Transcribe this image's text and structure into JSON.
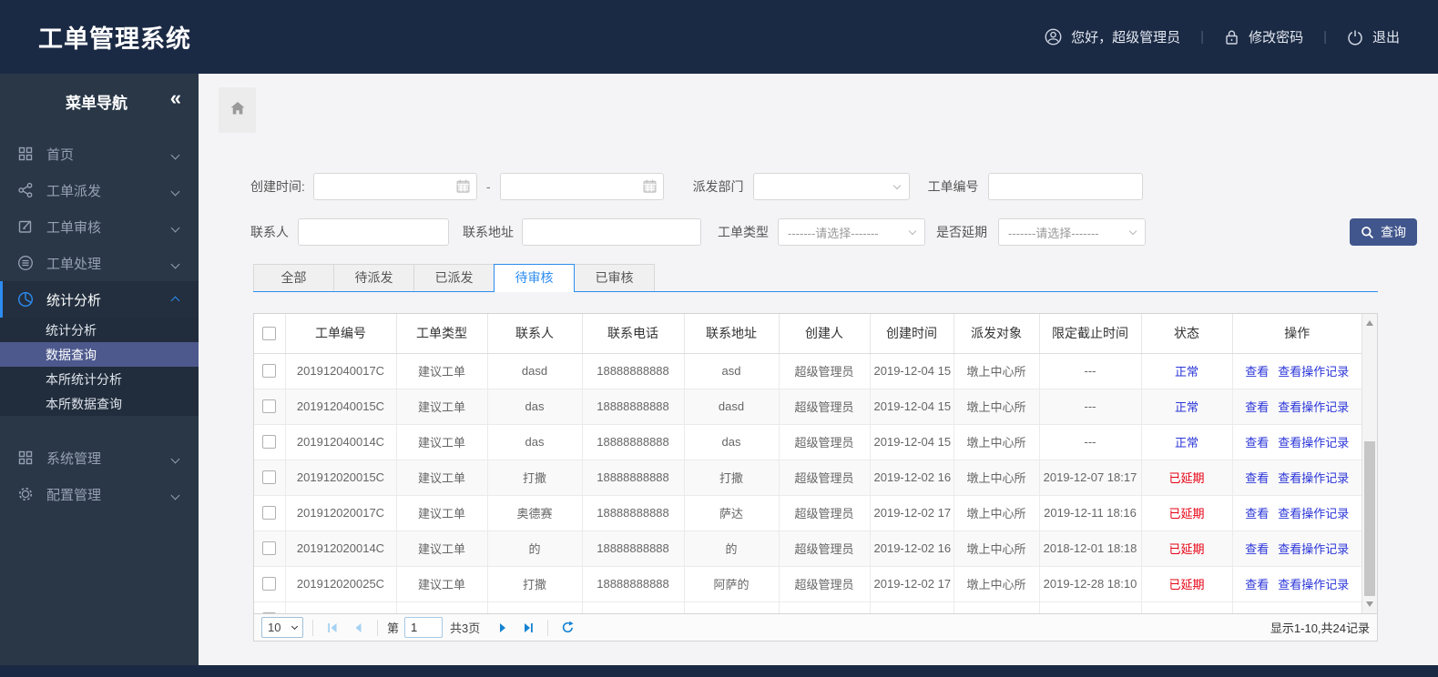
{
  "colors": {
    "navy": "#1b2a44",
    "accent": "#2d8cf0",
    "link": "#2b35d8",
    "btn": "#41568c",
    "status_normal": "#2b35d8",
    "status_delayed": "#e60012"
  },
  "header": {
    "app_title": "工单管理系统",
    "greeting": "您好，超级管理员",
    "change_password": "修改密码",
    "logout": "退出",
    "divider": "|"
  },
  "sidebar": {
    "title": "菜单导航",
    "collapse_glyph": "«",
    "items": [
      {
        "label": "首页",
        "icon": "grid-icon",
        "expanded": false,
        "active": false
      },
      {
        "label": "工单派发",
        "icon": "share-icon",
        "expanded": false,
        "active": false
      },
      {
        "label": "工单审核",
        "icon": "edit-icon",
        "expanded": false,
        "active": false
      },
      {
        "label": "工单处理",
        "icon": "process-icon",
        "expanded": false,
        "active": false
      },
      {
        "label": "统计分析",
        "icon": "pie-chart-icon",
        "expanded": true,
        "active": true,
        "children": [
          {
            "label": "统计分析",
            "selected": false
          },
          {
            "label": "数据查询",
            "selected": true
          },
          {
            "label": "本所统计分析",
            "selected": false
          },
          {
            "label": "本所数据查询",
            "selected": false
          }
        ]
      },
      {
        "label": "系统管理",
        "icon": "grid-icon",
        "expanded": false,
        "active": false
      },
      {
        "label": "配置管理",
        "icon": "gear-icon",
        "expanded": false,
        "active": false
      }
    ]
  },
  "filters": {
    "create_time_label": "创建时间:",
    "date_range_separator": "-",
    "date_from_value": "",
    "date_to_value": "",
    "dispatch_dept_label": "派发部门",
    "dispatch_dept_value": "",
    "order_no_label": "工单编号",
    "order_no_value": "",
    "contact_label": "联系人",
    "contact_value": "",
    "address_label": "联系地址",
    "address_value": "",
    "order_type_label": "工单类型",
    "order_type_value": "-------请选择-------",
    "delay_label": "是否延期",
    "delay_value": "-------请选择-------",
    "search_button": "查询"
  },
  "tabs": [
    {
      "label": "全部",
      "active": false
    },
    {
      "label": "待派发",
      "active": false
    },
    {
      "label": "已派发",
      "active": false
    },
    {
      "label": "待审核",
      "active": true
    },
    {
      "label": "已审核",
      "active": false
    }
  ],
  "table": {
    "columns": [
      "工单编号",
      "工单类型",
      "联系人",
      "联系电话",
      "联系地址",
      "创建人",
      "创建时间",
      "派发对象",
      "限定截止时间",
      "状态",
      "操作"
    ],
    "action_labels": [
      "查看",
      "查看操作记录"
    ],
    "rows": [
      {
        "order_no": "201912040017C",
        "type": "建议工单",
        "contact": "dasd",
        "phone": "18888888888",
        "address": "asd",
        "creator": "超级管理员",
        "created": "2019-12-04 15",
        "target": "墩上中心所",
        "deadline": "---",
        "status": "正常"
      },
      {
        "order_no": "201912040015C",
        "type": "建议工单",
        "contact": "das",
        "phone": "18888888888",
        "address": "dasd",
        "creator": "超级管理员",
        "created": "2019-12-04 15",
        "target": "墩上中心所",
        "deadline": "---",
        "status": "正常"
      },
      {
        "order_no": "201912040014C",
        "type": "建议工单",
        "contact": "das",
        "phone": "18888888888",
        "address": "das",
        "creator": "超级管理员",
        "created": "2019-12-04 15",
        "target": "墩上中心所",
        "deadline": "---",
        "status": "正常"
      },
      {
        "order_no": "201912020015C",
        "type": "建议工单",
        "contact": "打撒",
        "phone": "18888888888",
        "address": "打撒",
        "creator": "超级管理员",
        "created": "2019-12-02 16",
        "target": "墩上中心所",
        "deadline": "2019-12-07 18:17",
        "status": "已延期"
      },
      {
        "order_no": "201912020017C",
        "type": "建议工单",
        "contact": "奥德赛",
        "phone": "18888888888",
        "address": "萨达",
        "creator": "超级管理员",
        "created": "2019-12-02 17",
        "target": "墩上中心所",
        "deadline": "2019-12-11 18:16",
        "status": "已延期"
      },
      {
        "order_no": "201912020014C",
        "type": "建议工单",
        "contact": "的",
        "phone": "18888888888",
        "address": "的",
        "creator": "超级管理员",
        "created": "2019-12-02 16",
        "target": "墩上中心所",
        "deadline": "2018-12-01 18:18",
        "status": "已延期"
      },
      {
        "order_no": "201912020025C",
        "type": "建议工单",
        "contact": "打撒",
        "phone": "18888888888",
        "address": "阿萨的",
        "creator": "超级管理员",
        "created": "2019-12-02 17",
        "target": "墩上中心所",
        "deadline": "2019-12-28 18:10",
        "status": "已延期"
      }
    ],
    "partial_row_visible": true
  },
  "pagination": {
    "page_size": "10",
    "page_prefix": "第",
    "current_page": "1",
    "total_pages": "共3页",
    "summary": "显示1-10,共24记录"
  }
}
